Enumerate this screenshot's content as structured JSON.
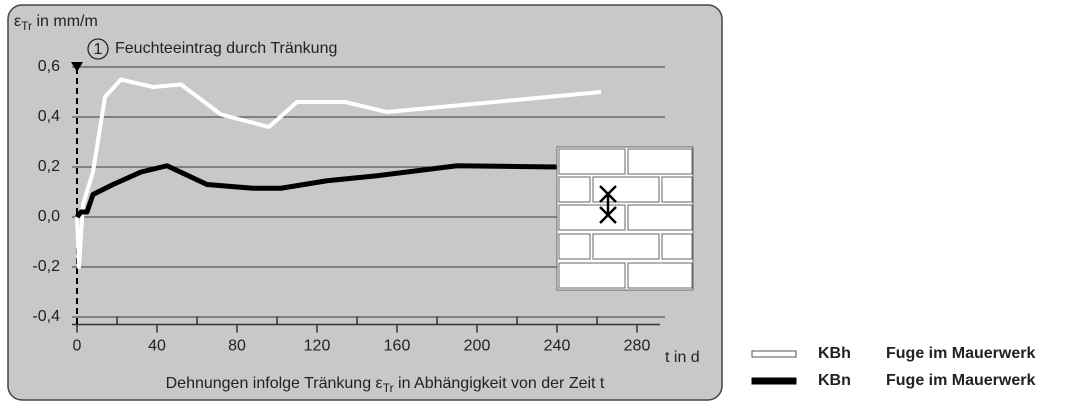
{
  "chart_data": {
    "type": "line",
    "y_label": {
      "symbol": "ε",
      "sub": "Tr",
      "rest": " in mm/m"
    },
    "x_label": "t in d",
    "caption": {
      "before": "Dehnungen infolge Tränkung ",
      "symbol": "ε",
      "sub": "Tr",
      "after": " in Abhängigkeit von der Zeit t"
    },
    "annotation": {
      "number": "1",
      "text": "Feuchteeintrag durch Tränkung",
      "x": 0
    },
    "xlim": [
      0,
      290
    ],
    "ylim": [
      -0.43,
      0.6
    ],
    "xticks": [
      0,
      40,
      80,
      120,
      160,
      200,
      240,
      280
    ],
    "xminor_ticks": [
      20,
      60,
      100,
      140,
      180,
      220,
      260
    ],
    "yticks": [
      {
        "value": 0.6,
        "label": "0,6"
      },
      {
        "value": 0.4,
        "label": "0,4"
      },
      {
        "value": 0.2,
        "label": "0,2"
      },
      {
        "value": 0.0,
        "label": "0,0"
      },
      {
        "value": -0.2,
        "label": "-0,2"
      },
      {
        "value": -0.4,
        "label": "-0,4"
      }
    ],
    "grid": true,
    "series": [
      {
        "name": "KBh",
        "description": "Fuge im Mauerwerk",
        "color": "#ffffff",
        "x": [
          0,
          1,
          3,
          8,
          14,
          22,
          38,
          52,
          72,
          96,
          110,
          134,
          155,
          262
        ],
        "values": [
          0.0,
          -0.2,
          0.05,
          0.18,
          0.48,
          0.55,
          0.52,
          0.53,
          0.41,
          0.36,
          0.46,
          0.46,
          0.42,
          0.5
        ]
      },
      {
        "name": "KBn",
        "description": "Fuge im Mauerwerk",
        "color": "#000000",
        "x": [
          0,
          2,
          5,
          8,
          18,
          32,
          45,
          65,
          88,
          102,
          125,
          150,
          190,
          240
        ],
        "values": [
          0.0,
          0.02,
          0.02,
          0.09,
          0.13,
          0.18,
          0.205,
          0.13,
          0.115,
          0.115,
          0.145,
          0.165,
          0.205,
          0.2
        ]
      }
    ]
  }
}
